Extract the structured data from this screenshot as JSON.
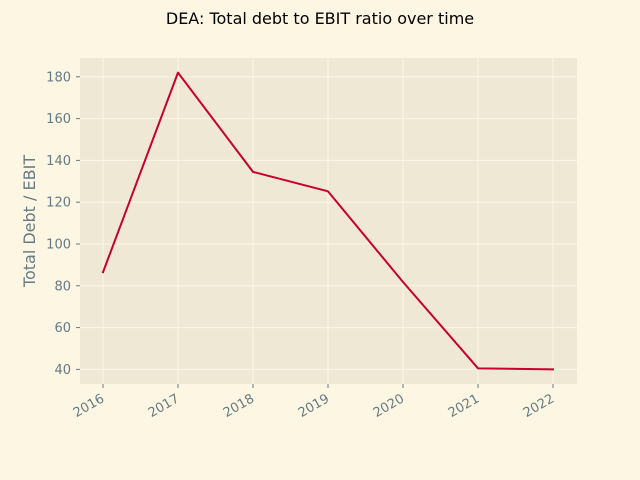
{
  "chart_data": {
    "type": "line",
    "title": "DEA: Total debt to EBIT ratio over time",
    "xlabel": "",
    "ylabel": "Total Debt / EBIT",
    "x": [
      "2016",
      "2017",
      "2018",
      "2019",
      "2020",
      "2021",
      "2022"
    ],
    "series": [
      {
        "values": [
          86.5,
          182.0,
          134.5,
          125.2,
          81.8,
          40.5,
          40.0
        ]
      }
    ],
    "yticks": [
      40,
      60,
      80,
      100,
      120,
      140,
      160,
      180
    ],
    "ylim": [
      33,
      189
    ],
    "grid": true,
    "legend": "none",
    "colors": {
      "background": "#fdf6e3",
      "plot_background": "#eee8d5",
      "line": "#c9002b",
      "grid": "#fdf6e3",
      "text": "#657b83"
    }
  }
}
